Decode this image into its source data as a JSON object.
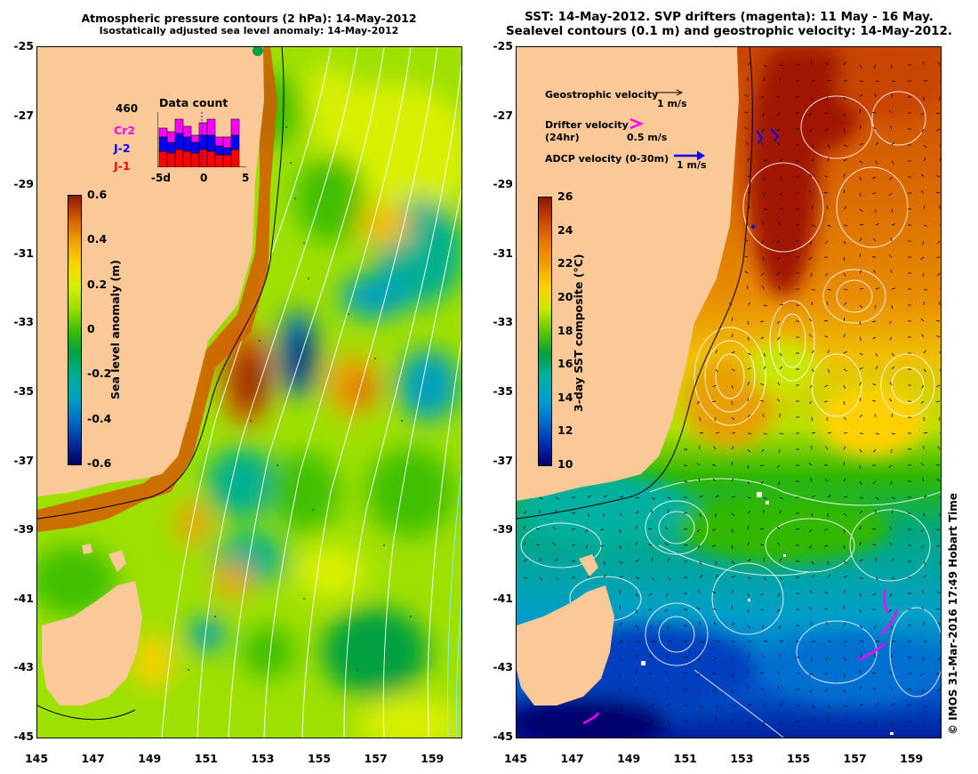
{
  "left_panel": {
    "title_line1": "Atmospheric pressure contours (2 hPa): 14-May-2012",
    "title_line2": "Isostatically adjusted sea level anomaly: 14-May-2012",
    "y_ticks": [
      "-25",
      "-27",
      "-29",
      "-31",
      "-33",
      "-35",
      "-37",
      "-39",
      "-41",
      "-43",
      "-45"
    ],
    "x_ticks": [
      "145",
      "147",
      "149",
      "151",
      "153",
      "155",
      "157",
      "159"
    ],
    "colorbar": {
      "label": "Sea level anomaly (m)",
      "ticks": [
        "0.6",
        "0.4",
        "0.2",
        "0",
        "-0.2",
        "-0.4",
        "-0.6"
      ],
      "colors": [
        "#8b1a00",
        "#d45a00",
        "#f0a000",
        "#ffd000",
        "#d8f000",
        "#9ee000",
        "#40c000",
        "#00a040",
        "#00b090",
        "#00a0c0",
        "#0070c8",
        "#0030a0",
        "#000060"
      ]
    },
    "data_count": {
      "total": "460",
      "title": "Data count",
      "legend": [
        {
          "label": "Cr2",
          "color": "#ff00ff"
        },
        {
          "label": "J-2",
          "color": "#0000ff"
        },
        {
          "label": "J-1",
          "color": "#ff0000"
        }
      ],
      "x_ticks": [
        "-5d",
        "0",
        "5"
      ]
    }
  },
  "right_panel": {
    "title_line1": "SST: 14-May-2012. SVP drifters (magenta): 11 May - 16 May.",
    "title_line2": "Sealevel contours (0.1 m) and geostrophic velocity: 14-May-2012.",
    "y_ticks": [
      "-25",
      "-27",
      "-29",
      "-31",
      "-33",
      "-35",
      "-37",
      "-39",
      "-41",
      "-43",
      "-45"
    ],
    "x_ticks": [
      "145",
      "147",
      "149",
      "151",
      "153",
      "155",
      "157",
      "159"
    ],
    "colorbar": {
      "label": "3-day SST composite (°C)",
      "ticks": [
        "26",
        "24",
        "22",
        "20",
        "18",
        "16",
        "14",
        "12",
        "10"
      ],
      "colors": [
        "#8b1a00",
        "#c84400",
        "#e87800",
        "#f0a000",
        "#ffd000",
        "#c8e800",
        "#60c800",
        "#00a040",
        "#00b0a0",
        "#00a0d0",
        "#0070d0",
        "#0030b0",
        "#000070"
      ]
    },
    "legend": {
      "geostrophic_label": "Geostrophic velocity",
      "geostrophic_scale": "1 m/s",
      "drifter_label": "Drifter velocity",
      "drifter_sub": "(24hr)",
      "drifter_scale": "0.5 m/s",
      "adcp_label": "ADCP velocity (0-30m)",
      "adcp_scale": "1 m/s"
    }
  },
  "credit": "© IMOS 31-Mar-2016 17:49 Hobart Time",
  "colors": {
    "land": "#fbc898",
    "drifter": "#ff00ff",
    "adcp": "#0000ff"
  }
}
